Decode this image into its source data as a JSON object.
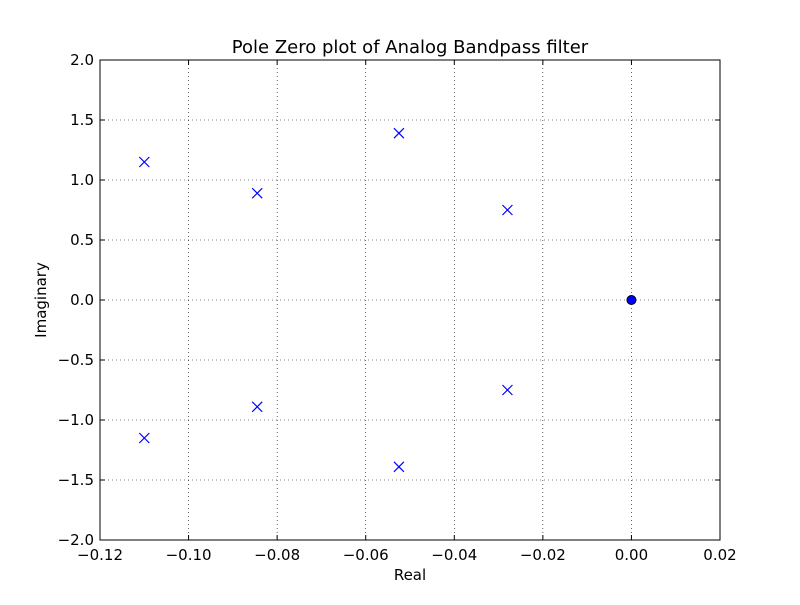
{
  "chart_data": {
    "type": "scatter",
    "title": "Pole Zero plot of Analog Bandpass filter",
    "xlabel": "Real",
    "ylabel": "Imaginary",
    "xlim": [
      -0.12,
      0.02
    ],
    "ylim": [
      -2.0,
      2.0
    ],
    "x_ticks": [
      -0.12,
      -0.1,
      -0.08,
      -0.06,
      -0.04,
      -0.02,
      0.0,
      0.02
    ],
    "x_tick_labels": [
      "−0.12",
      "−0.10",
      "−0.08",
      "−0.06",
      "−0.04",
      "−0.02",
      "0.00",
      "0.02"
    ],
    "y_ticks": [
      2.0,
      1.5,
      1.0,
      0.5,
      0.0,
      -0.5,
      -1.0,
      -1.5,
      -2.0
    ],
    "y_tick_labels": [
      "2.0",
      "1.5",
      "1.0",
      "0.5",
      "0.0",
      "−0.5",
      "−1.0",
      "−1.5",
      "−2.0"
    ],
    "grid": true,
    "series": [
      {
        "marker": "x",
        "color": "#0000ff",
        "x": [
          -0.11,
          -0.11,
          -0.0845,
          -0.0845,
          -0.0525,
          -0.0525,
          -0.028,
          -0.028
        ],
        "y": [
          1.15,
          -1.15,
          0.89,
          -0.89,
          1.39,
          -1.39,
          0.75,
          -0.75
        ]
      },
      {
        "marker": "o",
        "color": "#0000ff",
        "x": [
          0.0
        ],
        "y": [
          0.0
        ]
      }
    ]
  }
}
